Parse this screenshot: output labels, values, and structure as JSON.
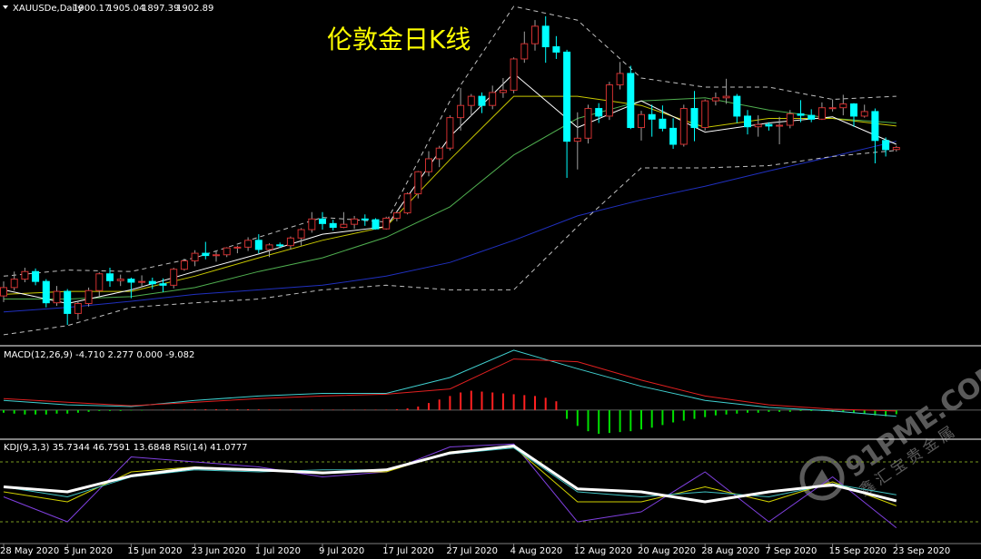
{
  "watermark": [
    "91PME.COM",
    "鑫汇宝贵金属"
  ],
  "chart_data": [
    {
      "type": "candlestick",
      "title": "伦敦金日K线",
      "symbol": "XAUUSDe,Daily",
      "categories": [
        "28 May 2020",
        null,
        null,
        null,
        null,
        null,
        "5 Jun 2020",
        null,
        null,
        null,
        null,
        null,
        "15 Jun 2020",
        null,
        null,
        null,
        null,
        null,
        "23 Jun 2020",
        null,
        null,
        null,
        null,
        null,
        "1 Jul 2020",
        null,
        null,
        null,
        null,
        null,
        "9 Jul 2020",
        null,
        null,
        null,
        null,
        null,
        "17 Jul 2020",
        null,
        null,
        null,
        null,
        null,
        "27 Jul 2020",
        null,
        null,
        null,
        null,
        null,
        "4 Aug 2020",
        null,
        null,
        null,
        null,
        null,
        "12 Aug 2020",
        null,
        null,
        null,
        null,
        null,
        "20 Aug 2020",
        null,
        null,
        null,
        null,
        null,
        "28 Aug 2020",
        null,
        null,
        null,
        null,
        null,
        "7 Sep 2020",
        null,
        null,
        null,
        null,
        null,
        "15 Sep 2020",
        null,
        null,
        null,
        null,
        null,
        "23 Sep 2020"
      ],
      "open": [
        1708,
        1719,
        1730,
        1740,
        1727,
        1699,
        1714,
        1685,
        1698,
        1715,
        1737,
        1728,
        1730,
        1726,
        1727,
        1724,
        1722,
        1743,
        1754,
        1764,
        1761,
        1762,
        1771,
        1772,
        1781,
        1769,
        1775,
        1774,
        1784,
        1795,
        1809,
        1803,
        1798,
        1802,
        1809,
        1808,
        1796,
        1810,
        1817,
        1842,
        1871,
        1888,
        1902,
        1942,
        1958,
        1970,
        1958,
        1975,
        1978,
        2019,
        2039,
        2062,
        2035,
        2028,
        1911,
        1915,
        1954,
        1944,
        1985,
        2000,
        1929,
        1946,
        1940,
        1928,
        1907,
        1954,
        1929,
        1964,
        1968,
        1970,
        1944,
        1930,
        1933,
        1931,
        1932,
        1947,
        1945,
        1940,
        1955,
        1955,
        1960,
        1944,
        1950,
        1912,
        1900.17
      ],
      "high": [
        1727,
        1740,
        1745,
        1744,
        1730,
        1721,
        1717,
        1700,
        1719,
        1739,
        1745,
        1736,
        1732,
        1735,
        1732,
        1731,
        1745,
        1757,
        1768,
        1779,
        1767,
        1772,
        1774,
        1785,
        1789,
        1777,
        1778,
        1786,
        1797,
        1818,
        1818,
        1808,
        1818,
        1813,
        1815,
        1810,
        1812,
        1819,
        1844,
        1872,
        1898,
        1905,
        1945,
        1981,
        1973,
        1975,
        1984,
        1994,
        2021,
        2055,
        2070,
        2075,
        2049,
        2031,
        1949,
        1959,
        1961,
        1989,
        2015,
        2010,
        1951,
        1959,
        1958,
        1941,
        1959,
        1977,
        1966,
        1975,
        1993,
        1973,
        1952,
        1945,
        1936,
        1943,
        1952,
        1965,
        1953,
        1962,
        1966,
        1972,
        1961,
        1959,
        1954,
        1916,
        1905.04
      ],
      "low": [
        1700,
        1715,
        1726,
        1722,
        1693,
        1695,
        1670,
        1677,
        1694,
        1708,
        1720,
        1721,
        1705,
        1720,
        1717,
        1713,
        1718,
        1741,
        1747,
        1756,
        1753,
        1759,
        1764,
        1767,
        1764,
        1759,
        1771,
        1769,
        1774,
        1791,
        1795,
        1794,
        1797,
        1796,
        1800,
        1795,
        1795,
        1806,
        1815,
        1836,
        1865,
        1877,
        1899,
        1925,
        1944,
        1948,
        1953,
        1968,
        1974,
        2014,
        2030,
        2014,
        2019,
        1863,
        1874,
        1908,
        1935,
        1939,
        1979,
        1927,
        1912,
        1917,
        1924,
        1901,
        1904,
        1911,
        1925,
        1958,
        1960,
        1935,
        1920,
        1917,
        1925,
        1907,
        1928,
        1936,
        1936,
        1939,
        1950,
        1945,
        1930,
        1942,
        1882,
        1891,
        1897.39
      ],
      "close": [
        1719,
        1730,
        1740,
        1727,
        1699,
        1714,
        1685,
        1698,
        1715,
        1737,
        1728,
        1730,
        1726,
        1727,
        1724,
        1722,
        1743,
        1754,
        1764,
        1761,
        1762,
        1771,
        1772,
        1781,
        1769,
        1775,
        1774,
        1784,
        1795,
        1809,
        1803,
        1798,
        1802,
        1809,
        1808,
        1796,
        1810,
        1817,
        1842,
        1871,
        1888,
        1902,
        1942,
        1958,
        1970,
        1958,
        1975,
        1978,
        2019,
        2039,
        2062,
        2035,
        2028,
        1911,
        1915,
        1954,
        1944,
        1985,
        2000,
        1929,
        1946,
        1940,
        1928,
        1907,
        1954,
        1929,
        1964,
        1968,
        1970,
        1944,
        1930,
        1933,
        1931,
        1932,
        1947,
        1945,
        1940,
        1955,
        1955,
        1960,
        1944,
        1950,
        1912,
        1900,
        1902.89
      ],
      "up_color": "#d03030",
      "down_color": "#00ffff",
      "title_color": "#ffff00",
      "ylim": [
        1645,
        2094
      ],
      "overlays": [
        {
          "color": "#2030c0",
          "dashed": false,
          "x": [
            "28 May 2020",
            "5 Jun 2020",
            "15 Jun 2020",
            "23 Jun 2020",
            "1 Jul 2020",
            "9 Jul 2020",
            "17 Jul 2020",
            "27 Jul 2020",
            "4 Aug 2020",
            "12 Aug 2020",
            "20 Aug 2020",
            "28 Aug 2020",
            "7 Sep 2020",
            "15 Sep 2020",
            "23 Sep 2020"
          ],
          "values": [
            1687,
            1693,
            1701,
            1710,
            1716,
            1722,
            1734,
            1752,
            1781,
            1813,
            1834,
            1852,
            1872,
            1891,
            1911
          ]
        },
        {
          "color": "#50b050",
          "dashed": false,
          "x": [
            "28 May 2020",
            "5 Jun 2020",
            "15 Jun 2020",
            "23 Jun 2020",
            "1 Jul 2020",
            "9 Jul 2020",
            "17 Jul 2020",
            "27 Jul 2020",
            "4 Aug 2020",
            "12 Aug 2020",
            "20 Aug 2020",
            "28 Aug 2020",
            "7 Sep 2020",
            "15 Sep 2020",
            "23 Sep 2020"
          ],
          "values": [
            1704,
            1704,
            1707,
            1719,
            1740,
            1758,
            1785,
            1825,
            1893,
            1941,
            1964,
            1968,
            1952,
            1941,
            1935
          ]
        },
        {
          "color": "#c8c800",
          "dashed": false,
          "x": [
            "28 May 2020",
            "5 Jun 2020",
            "15 Jun 2020",
            "23 Jun 2020",
            "1 Jul 2020",
            "9 Jul 2020",
            "17 Jul 2020",
            "27 Jul 2020",
            "4 Aug 2020",
            "12 Aug 2020",
            "20 Aug 2020",
            "28 Aug 2020",
            "7 Sep 2020",
            "15 Sep 2020",
            "23 Sep 2020"
          ],
          "values": [
            1710,
            1714,
            1714,
            1734,
            1758,
            1781,
            1799,
            1887,
            1970,
            1970,
            1958,
            1929,
            1941,
            1941,
            1931
          ]
        },
        {
          "color": "#ffffff",
          "dashed": false,
          "x": [
            "28 May 2020",
            "5 Jun 2020",
            "15 Jun 2020",
            "23 Jun 2020",
            "1 Jul 2020",
            "9 Jul 2020",
            "17 Jul 2020",
            "27 Jul 2020",
            "4 Aug 2020",
            "12 Aug 2020",
            "20 Aug 2020",
            "28 Aug 2020",
            "7 Sep 2020",
            "15 Sep 2020",
            "23 Sep 2020"
          ],
          "values": [
            1716,
            1698,
            1716,
            1740,
            1763,
            1789,
            1799,
            1917,
            2000,
            1929,
            1964,
            1923,
            1935,
            1943,
            1907
          ]
        },
        {
          "color": "#c0c0c0",
          "dashed": true,
          "x": [
            "28 May 2020",
            "5 Jun 2020",
            "15 Jun 2020",
            "23 Jun 2020",
            "1 Jul 2020",
            "9 Jul 2020",
            "17 Jul 2020",
            "27 Jul 2020",
            "4 Aug 2020",
            "12 Aug 2020",
            "20 Aug 2020",
            "28 Aug 2020",
            "7 Sep 2020",
            "15 Sep 2020",
            "23 Sep 2020"
          ],
          "values": [
            1734,
            1742,
            1740,
            1758,
            1785,
            1811,
            1805,
            1964,
            2088,
            2070,
            1994,
            1982,
            1982,
            1966,
            1970
          ]
        },
        {
          "color": "#c0c0c0",
          "dashed": true,
          "x": [
            "28 May 2020",
            "5 Jun 2020",
            "15 Jun 2020",
            "23 Jun 2020",
            "1 Jul 2020",
            "9 Jul 2020",
            "17 Jul 2020",
            "27 Jul 2020",
            "4 Aug 2020",
            "12 Aug 2020",
            "20 Aug 2020",
            "28 Aug 2020",
            "7 Sep 2020",
            "15 Sep 2020",
            "23 Sep 2020"
          ],
          "values": [
            1657,
            1669,
            1693,
            1699,
            1704,
            1716,
            1722,
            1716,
            1716,
            1799,
            1876,
            1876,
            1879,
            1891,
            1899
          ]
        }
      ]
    },
    {
      "type": "bar",
      "header": "MACD(12,26,9) -4.710 2.277 0.000 -9.082",
      "values": [
        -3,
        -4,
        -5,
        -5,
        -5,
        -4,
        -4,
        -3,
        -2,
        -1,
        -1,
        -1,
        -0.5,
        -0.5,
        0.3,
        0.5,
        0.5,
        0.5,
        0.8,
        1,
        1,
        1,
        1,
        1,
        0.8,
        0.5,
        0.5,
        0.5,
        0.5,
        0.5,
        0.5,
        0.5,
        0.5,
        0.5,
        0.5,
        0.5,
        0.5,
        1,
        2,
        4,
        8,
        12,
        16,
        20,
        22,
        21,
        20,
        19,
        18,
        17,
        16,
        14,
        10,
        -10,
        -18,
        -24,
        -27,
        -26,
        -25,
        -24,
        -22,
        -20,
        -17,
        -14,
        -12,
        -10,
        -8,
        -6,
        -5,
        -4,
        -3,
        -3,
        -2,
        -2,
        -2,
        -1,
        -1,
        -1,
        -2,
        -2,
        -3,
        -4,
        -6,
        -7,
        -4.71
      ],
      "pos_color": "#ff2020",
      "neg_color": "#00e000",
      "ylim": [
        -30,
        70
      ],
      "lines": [
        {
          "color": "#40d0d0",
          "x": [
            "28 May 2020",
            "5 Jun 2020",
            "15 Jun 2020",
            "23 Jun 2020",
            "1 Jul 2020",
            "9 Jul 2020",
            "17 Jul 2020",
            "27 Jul 2020",
            "4 Aug 2020",
            "12 Aug 2020",
            "20 Aug 2020",
            "28 Aug 2020",
            "7 Sep 2020",
            "15 Sep 2020",
            "23 Sep 2020"
          ],
          "values": [
            11,
            6,
            4,
            11,
            16,
            19,
            19,
            37,
            68,
            47,
            27,
            11,
            3,
            -1,
            -7
          ]
        },
        {
          "color": "#e02020",
          "x": [
            "28 May 2020",
            "5 Jun 2020",
            "15 Jun 2020",
            "23 Jun 2020",
            "1 Jul 2020",
            "9 Jul 2020",
            "17 Jul 2020",
            "27 Jul 2020",
            "4 Aug 2020",
            "12 Aug 2020",
            "20 Aug 2020",
            "28 Aug 2020",
            "7 Sep 2020",
            "15 Sep 2020",
            "23 Sep 2020"
          ],
          "values": [
            13,
            9,
            5,
            9,
            13,
            16,
            18,
            24,
            58,
            55,
            34,
            16,
            6,
            1,
            -1
          ]
        }
      ]
    },
    {
      "type": "line",
      "header": "KDJ(9,3,3) 35.7344 46.7591 13.6848  RSI(14) 41.0777",
      "ylim": [
        0,
        100
      ],
      "levels": [
        80,
        20
      ],
      "level_color": "#7a9a20",
      "series": [
        {
          "color": "#8040e0",
          "width": 1,
          "x": [
            "28 May 2020",
            "5 Jun 2020",
            "15 Jun 2020",
            "23 Jun 2020",
            "1 Jul 2020",
            "9 Jul 2020",
            "17 Jul 2020",
            "27 Jul 2020",
            "4 Aug 2020",
            "12 Aug 2020",
            "20 Aug 2020",
            "28 Aug 2020",
            "7 Sep 2020",
            "15 Sep 2020",
            "23 Sep 2020"
          ],
          "values": [
            45,
            20,
            85,
            80,
            75,
            65,
            70,
            95,
            98,
            20,
            30,
            70,
            20,
            65,
            14
          ]
        },
        {
          "color": "#d0d000",
          "width": 1,
          "x": [
            "28 May 2020",
            "5 Jun 2020",
            "15 Jun 2020",
            "23 Jun 2020",
            "1 Jul 2020",
            "9 Jul 2020",
            "17 Jul 2020",
            "27 Jul 2020",
            "4 Aug 2020",
            "12 Aug 2020",
            "20 Aug 2020",
            "28 Aug 2020",
            "7 Sep 2020",
            "15 Sep 2020",
            "23 Sep 2020"
          ],
          "values": [
            50,
            40,
            70,
            75,
            72,
            70,
            70,
            90,
            95,
            40,
            40,
            55,
            40,
            60,
            36
          ]
        },
        {
          "color": "#40c0c0",
          "width": 1,
          "x": [
            "28 May 2020",
            "5 Jun 2020",
            "15 Jun 2020",
            "23 Jun 2020",
            "1 Jul 2020",
            "9 Jul 2020",
            "17 Jul 2020",
            "27 Jul 2020",
            "4 Aug 2020",
            "12 Aug 2020",
            "20 Aug 2020",
            "28 Aug 2020",
            "7 Sep 2020",
            "15 Sep 2020",
            "23 Sep 2020"
          ],
          "values": [
            55,
            45,
            65,
            72,
            70,
            72,
            72,
            88,
            94,
            50,
            45,
            50,
            45,
            58,
            47
          ]
        },
        {
          "color": "#ffffff",
          "width": 3,
          "x": [
            "28 May 2020",
            "5 Jun 2020",
            "15 Jun 2020",
            "23 Jun 2020",
            "1 Jul 2020",
            "9 Jul 2020",
            "17 Jul 2020",
            "27 Jul 2020",
            "4 Aug 2020",
            "12 Aug 2020",
            "20 Aug 2020",
            "28 Aug 2020",
            "7 Sep 2020",
            "15 Sep 2020",
            "23 Sep 2020"
          ],
          "values": [
            55,
            50,
            66,
            74,
            72,
            69,
            72,
            89,
            96,
            53,
            50,
            40,
            50,
            57,
            41
          ]
        }
      ]
    }
  ]
}
